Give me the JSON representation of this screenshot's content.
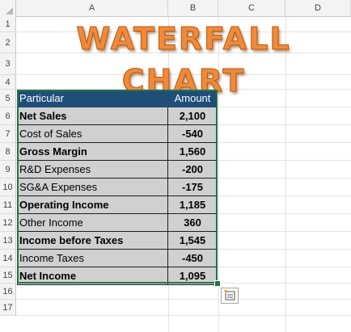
{
  "columns": [
    "A",
    "B",
    "C",
    "D"
  ],
  "rows": [
    "1",
    "2",
    "3",
    "4",
    "5",
    "6",
    "7",
    "8",
    "9",
    "10",
    "11",
    "12",
    "13",
    "14",
    "15",
    "16",
    "17"
  ],
  "title": "WATERFALL CHART",
  "table": {
    "header": {
      "particular": "Particular",
      "amount": "Amount"
    },
    "rows": [
      {
        "particular": "Net Sales",
        "amount": "2,100",
        "bold": true,
        "negative": false
      },
      {
        "particular": "Cost of Sales",
        "amount": "-540",
        "bold": false,
        "negative": true
      },
      {
        "particular": "Gross Margin",
        "amount": "1,560",
        "bold": true,
        "negative": false
      },
      {
        "particular": "R&D Expenses",
        "amount": "-200",
        "bold": false,
        "negative": true
      },
      {
        "particular": "SG&A Expenses",
        "amount": "-175",
        "bold": false,
        "negative": true
      },
      {
        "particular": "Operating Income",
        "amount": "1,185",
        "bold": true,
        "negative": false
      },
      {
        "particular": "Other Income",
        "amount": "360",
        "bold": false,
        "negative": false
      },
      {
        "particular": "Income before Taxes",
        "amount": "1,545",
        "bold": true,
        "negative": false
      },
      {
        "particular": "Income Taxes",
        "amount": "-450",
        "bold": false,
        "negative": true
      },
      {
        "particular": "Net Income",
        "amount": "1,095",
        "bold": true,
        "negative": false
      }
    ]
  },
  "colors": {
    "header_bg": "#1f4e79",
    "cell_bg": "#d0d0d0",
    "negative": "#c00000",
    "selection": "#217346",
    "title": "#f08a3a"
  },
  "quick_analysis": {
    "icon": "quick-analysis-icon"
  }
}
